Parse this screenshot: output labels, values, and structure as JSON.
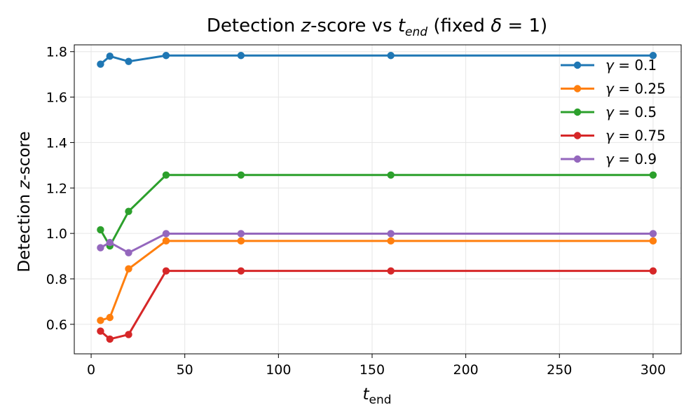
{
  "chart_data": {
    "type": "line",
    "title": "Detection z-score vs t_end (fixed δ = 1)",
    "title_parts": [
      "Detection ",
      "z",
      "-score vs ",
      "t",
      "end",
      " (fixed ",
      "δ",
      " = 1)"
    ],
    "xlabel": "t_end",
    "xlabel_parts": [
      "t",
      "end"
    ],
    "ylabel": "Detection z-score",
    "ylabel_parts": [
      "Detection ",
      "z",
      "-score"
    ],
    "xlim": [
      -9,
      315
    ],
    "ylim": [
      0.47,
      1.83
    ],
    "xticks": [
      0,
      50,
      100,
      150,
      200,
      250,
      300
    ],
    "xtick_labels": [
      "0",
      "50",
      "100",
      "150",
      "200",
      "250",
      "300"
    ],
    "yticks": [
      0.6,
      0.8,
      1.0,
      1.2,
      1.4,
      1.6,
      1.8
    ],
    "ytick_labels": [
      "0.6",
      "0.8",
      "1.0",
      "1.2",
      "1.4",
      "1.6",
      "1.8"
    ],
    "grid": true,
    "legend_position": "top-right",
    "x": [
      5,
      10,
      20,
      40,
      80,
      160,
      300
    ],
    "series": [
      {
        "name": "γ = 0.1",
        "symbol": "γ",
        "eq": " = 0.1",
        "color": "#1f77b4",
        "values": [
          1.745,
          1.78,
          1.757,
          1.783,
          1.783,
          1.783,
          1.783
        ]
      },
      {
        "name": "γ = 0.25",
        "symbol": "γ",
        "eq": " = 0.25",
        "color": "#ff7f0e",
        "values": [
          0.617,
          0.63,
          0.844,
          0.967,
          0.967,
          0.967,
          0.967
        ]
      },
      {
        "name": "γ = 0.5",
        "symbol": "γ",
        "eq": " = 0.5",
        "color": "#2ca02c",
        "values": [
          1.016,
          0.945,
          1.097,
          1.257,
          1.257,
          1.257,
          1.257
        ]
      },
      {
        "name": "γ = 0.75",
        "symbol": "γ",
        "eq": " = 0.75",
        "color": "#d62728",
        "values": [
          0.57,
          0.535,
          0.555,
          0.835,
          0.835,
          0.835,
          0.835
        ]
      },
      {
        "name": "γ = 0.9",
        "symbol": "γ",
        "eq": " = 0.9",
        "color": "#9467bd",
        "values": [
          0.937,
          0.96,
          0.915,
          0.999,
          0.999,
          0.999,
          0.999
        ]
      }
    ]
  }
}
